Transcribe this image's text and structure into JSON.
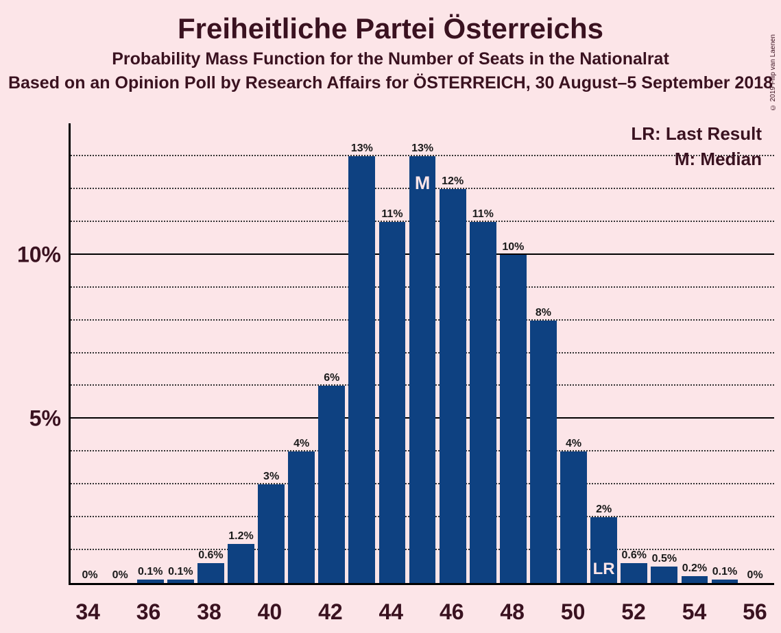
{
  "title": "Freiheitliche Partei Österreichs",
  "subtitle": "Probability Mass Function for the Number of Seats in the Nationalrat",
  "subtitle2": "Based on an Opinion Poll by Research Affairs for ÖSTERREICH, 30 August–5 September 2018",
  "copyright": "© 2019 Filip van Laenen",
  "legend": {
    "lr": "LR: Last Result",
    "m": "M: Median"
  },
  "chart": {
    "type": "bar",
    "bar_color": "#0e4181",
    "background_color": "#fce5e8",
    "text_color": "#3a1220",
    "ymax": 14,
    "ygrid_step": 1,
    "ymajor": [
      5,
      10
    ],
    "ylabel_suffix": "%",
    "categories": [
      34,
      35,
      36,
      37,
      38,
      39,
      40,
      41,
      42,
      43,
      44,
      45,
      46,
      47,
      48,
      49,
      50,
      51,
      52,
      53,
      54,
      55,
      56
    ],
    "xshow_every": 2,
    "values": [
      0,
      0,
      0.1,
      0.1,
      0.6,
      1.2,
      3,
      4,
      6,
      13,
      11,
      13,
      12,
      11,
      10,
      8,
      4,
      2,
      0.6,
      0.5,
      0.2,
      0.1,
      0
    ],
    "value_labels": [
      "0%",
      "0%",
      "0.1%",
      "0.1%",
      "0.6%",
      "1.2%",
      "3%",
      "4%",
      "6%",
      "13%",
      "11%",
      "13%",
      "12%",
      "11%",
      "10%",
      "8%",
      "4%",
      "2%",
      "0.6%",
      "0.5%",
      "0.2%",
      "0.1%",
      "0%"
    ],
    "median_index": 11,
    "lr_index": 17,
    "median_text": "M",
    "lr_text": "LR",
    "value_label_fontsize": 16,
    "axis_fontsize": 32
  }
}
